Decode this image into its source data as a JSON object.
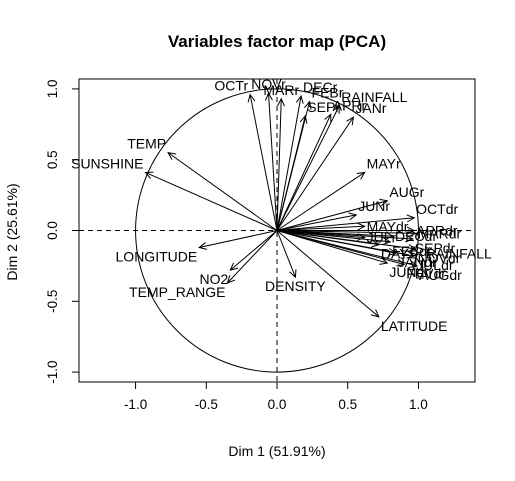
{
  "chart_data": {
    "type": "scatter",
    "title": "Variables factor map (PCA)",
    "xlabel": "Dim 1 (51.91%)",
    "ylabel": "Dim 2 (25.61%)",
    "xlim": [
      -1.4,
      1.4
    ],
    "ylim": [
      -1.07,
      1.07
    ],
    "xticks": [
      "-1.0",
      "-0.5",
      "0.0",
      "0.5",
      "1.0"
    ],
    "yticks": [
      "-1.0",
      "-0.5",
      "0.0",
      "0.5",
      "1.0"
    ],
    "grid": false,
    "unit_circle": true,
    "arrows": [
      {
        "label": "OCTr",
        "x": -0.19,
        "y": 0.96
      },
      {
        "label": "NOVr",
        "x": -0.06,
        "y": 0.97
      },
      {
        "label": "MARr",
        "x": 0.03,
        "y": 0.93
      },
      {
        "label": "DECr",
        "x": 0.17,
        "y": 0.95
      },
      {
        "label": "FEBr",
        "x": 0.23,
        "y": 0.91
      },
      {
        "label": "RAINFALL",
        "x": 0.44,
        "y": 0.88
      },
      {
        "label": "SEPr",
        "x": 0.2,
        "y": 0.81
      },
      {
        "label": "APRr",
        "x": 0.38,
        "y": 0.82
      },
      {
        "label": "JANr",
        "x": 0.54,
        "y": 0.8
      },
      {
        "label": "TEMP",
        "x": -0.77,
        "y": 0.55
      },
      {
        "label": "SUNSHINE",
        "x": -0.93,
        "y": 0.41
      },
      {
        "label": "MAYr",
        "x": 0.62,
        "y": 0.41
      },
      {
        "label": "AUGr",
        "x": 0.78,
        "y": 0.21
      },
      {
        "label": "JUNr",
        "x": 0.56,
        "y": 0.11
      },
      {
        "label": "OCTdr",
        "x": 0.97,
        "y": 0.09
      },
      {
        "label": "MAYdr",
        "x": 0.62,
        "y": 0.03
      },
      {
        "label": "JULr",
        "x": 0.62,
        "y": -0.05
      },
      {
        "label": "APRdr",
        "x": 0.97,
        "y": 0.0
      },
      {
        "label": "MARdr",
        "x": 0.98,
        "y": -0.02
      },
      {
        "label": "DECdr",
        "x": 0.82,
        "y": -0.04
      },
      {
        "label": "SEPdr",
        "x": 0.96,
        "y": -0.06
      },
      {
        "label": "FEBdr",
        "x": 0.8,
        "y": -0.08
      },
      {
        "label": "DAYS_RAINFALL",
        "x": 0.72,
        "y": -0.1
      },
      {
        "label": "NOVdr",
        "x": 0.98,
        "y": -0.13
      },
      {
        "label": "JANdr",
        "x": 0.84,
        "y": -0.16
      },
      {
        "label": "JULdr",
        "x": 0.97,
        "y": -0.18
      },
      {
        "label": "JUNdr",
        "x": 0.78,
        "y": -0.23
      },
      {
        "label": "FEVdr",
        "x": 0.9,
        "y": -0.24
      },
      {
        "label": "AUGdr",
        "x": 0.99,
        "y": -0.25
      },
      {
        "label": "LONGITUDE",
        "x": -0.55,
        "y": -0.12
      },
      {
        "label": "NO2",
        "x": -0.33,
        "y": -0.28
      },
      {
        "label": "TEMP_RANGE",
        "x": -0.35,
        "y": -0.37
      },
      {
        "label": "DENSITY",
        "x": 0.13,
        "y": -0.33
      },
      {
        "label": "LATITUDE",
        "x": 0.72,
        "y": -0.61
      }
    ]
  }
}
